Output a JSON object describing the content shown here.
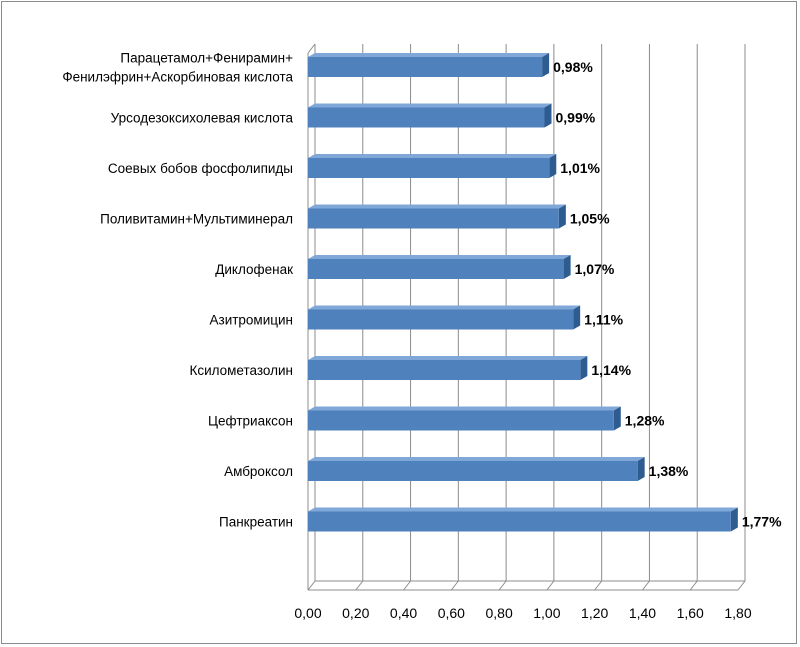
{
  "chart_data": {
    "type": "bar",
    "orientation": "horizontal",
    "style": "3d",
    "categories": [
      [
        "Парацетамол+Фенирамин+",
        "Фенилэфрин+Аскорбиновая кислота"
      ],
      [
        "Урсодезоксихолевая кислота"
      ],
      [
        "Соевых бобов фосфолипиды"
      ],
      [
        "Поливитамин+Мультиминерал"
      ],
      [
        "Диклофенак"
      ],
      [
        "Азитромицин"
      ],
      [
        "Ксилометазолин"
      ],
      [
        "Цефтриаксон"
      ],
      [
        "Амброксол"
      ],
      [
        "Панкреатин"
      ]
    ],
    "values": [
      0.98,
      0.99,
      1.01,
      1.05,
      1.07,
      1.11,
      1.14,
      1.28,
      1.38,
      1.77
    ],
    "data_labels": [
      "0,98%",
      "0,99%",
      "1,01%",
      "1,05%",
      "1,07%",
      "1,11%",
      "1,14%",
      "1,28%",
      "1,38%",
      "1,77%"
    ],
    "xlim": [
      0,
      1.8
    ],
    "x_ticks": [
      "0,00",
      "0,20",
      "0,40",
      "0,60",
      "0,80",
      "1,00",
      "1,20",
      "1,40",
      "1,60",
      "1,80"
    ],
    "grid": "vertical",
    "legend": "none",
    "colors": {
      "bar_front": "#4F81BD",
      "bar_top": "#7FA7D8",
      "bar_side": "#2E5C91",
      "grid": "#8c8c8c",
      "frame": "#8c8c8c"
    }
  }
}
